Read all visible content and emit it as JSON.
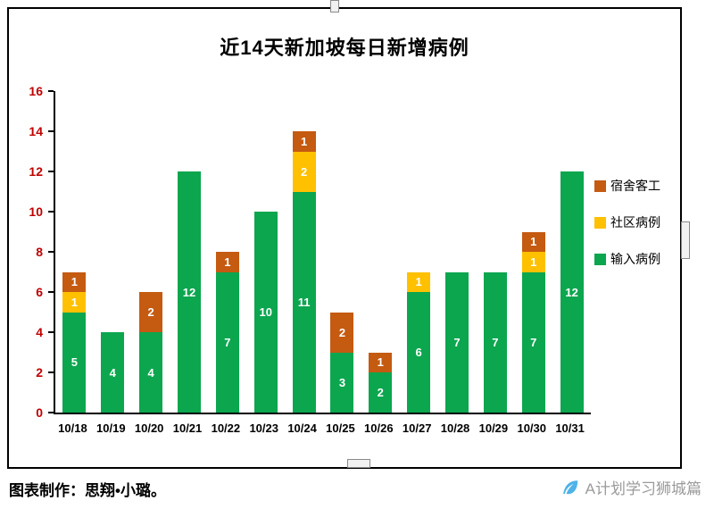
{
  "chart_data": {
    "type": "bar",
    "stacked": true,
    "title": "近14天新加坡每日新增病例",
    "categories": [
      "10/18",
      "10/19",
      "10/20",
      "10/21",
      "10/22",
      "10/23",
      "10/24",
      "10/25",
      "10/26",
      "10/27",
      "10/28",
      "10/29",
      "10/30",
      "10/31"
    ],
    "series": [
      {
        "name": "输入病例",
        "color": "#0ca64f",
        "values": [
          5,
          4,
          4,
          12,
          7,
          10,
          11,
          3,
          2,
          6,
          7,
          7,
          7,
          12
        ]
      },
      {
        "name": "社区病例",
        "color": "#ffc000",
        "values": [
          1,
          0,
          0,
          0,
          0,
          0,
          2,
          0,
          0,
          1,
          0,
          0,
          1,
          0
        ]
      },
      {
        "name": "宿舍客工",
        "color": "#c55a11",
        "values": [
          1,
          0,
          2,
          0,
          1,
          0,
          1,
          2,
          1,
          0,
          0,
          0,
          1,
          0
        ]
      }
    ],
    "totals": [
      7,
      4,
      6,
      12,
      8,
      10,
      14,
      5,
      3,
      7,
      7,
      7,
      9,
      12
    ],
    "legend_order": [
      "宿舍客工",
      "社区病例",
      "输入病例"
    ],
    "legend_position": "right",
    "xlabel": "",
    "ylabel": "",
    "ylim": [
      0,
      16
    ],
    "yticks": [
      0,
      2,
      4,
      6,
      8,
      10,
      12,
      14,
      16
    ],
    "grid": false,
    "ytick_color": "#c00000",
    "bar_label_color": "#ffffff"
  },
  "footer": {
    "credit": "图表制作：思翔•小璐。",
    "brand": "A计划学习狮城篇"
  }
}
